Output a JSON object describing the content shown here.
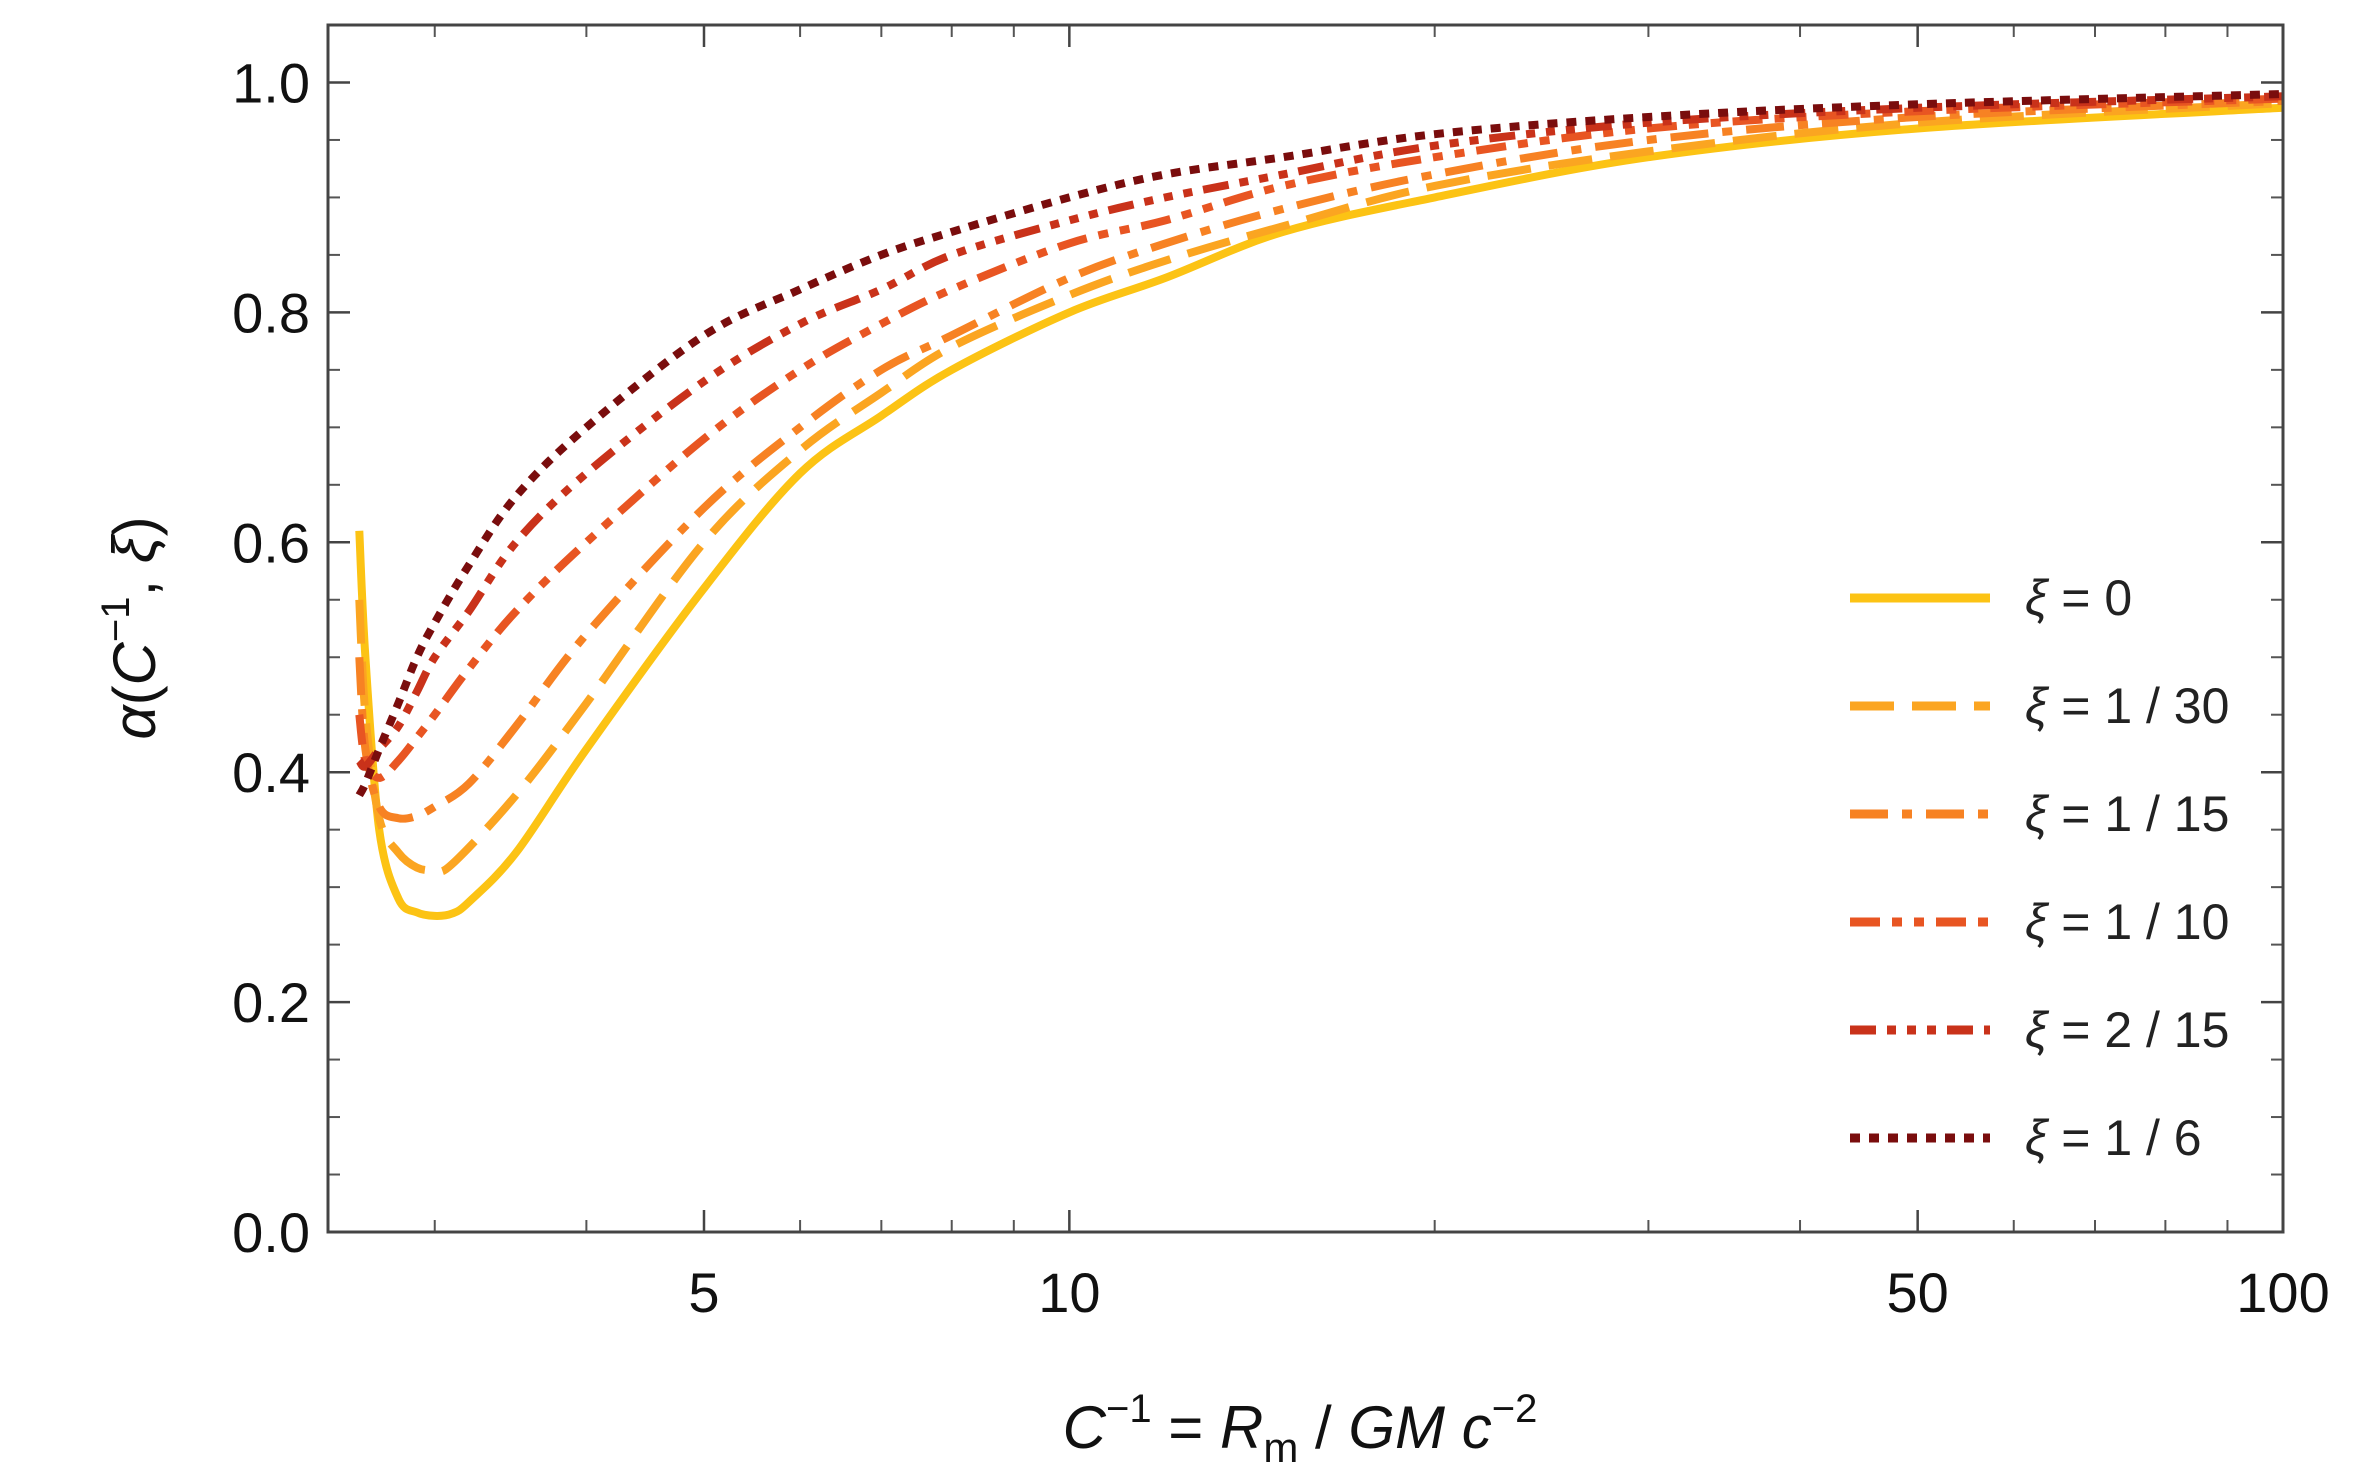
{
  "chart_data": {
    "type": "line",
    "xscale": "log",
    "xlim": [
      2.45,
      100
    ],
    "ylim": [
      0.0,
      1.05
    ],
    "grid": false,
    "legend_position": "right",
    "xlabel": {
      "base": "C",
      "base_exp": "−1",
      "eq": " = ",
      "r": "R",
      "r_sub": "m",
      "mid": " / ",
      "gm": "GM",
      "sp": " ",
      "c": "c",
      "c_exp": "−2"
    },
    "ylabel": {
      "alpha": "α",
      "open": "(",
      "c": "C",
      "c_exp": "−1",
      "comma": ", ",
      "xi": "ξ",
      "close": ")"
    },
    "x_ticks": [
      {
        "value": 5,
        "label": "5"
      },
      {
        "value": 10,
        "label": "10"
      },
      {
        "value": 50,
        "label": "50"
      },
      {
        "value": 100,
        "label": "100"
      }
    ],
    "y_ticks": [
      {
        "value": 0.0,
        "label": "0.0"
      },
      {
        "value": 0.2,
        "label": "0.2"
      },
      {
        "value": 0.4,
        "label": "0.4"
      },
      {
        "value": 0.6,
        "label": "0.6"
      },
      {
        "value": 0.8,
        "label": "0.8"
      },
      {
        "value": 1.0,
        "label": "1.0"
      }
    ],
    "series": [
      {
        "name": "ξ = 0",
        "label_xi": "ξ",
        "label_rest": " = 0",
        "color": "#FCC314",
        "dash": "solid",
        "x": [
          2.6,
          2.63,
          2.7,
          2.8,
          2.9,
          3.0,
          3.1,
          3.2,
          3.5,
          4.0,
          5.0,
          6.0,
          7.0,
          8.0,
          10.0,
          12.0,
          15.0,
          20.0,
          30.0,
          50.0,
          100.0
        ],
        "y": [
          0.61,
          0.5,
          0.35,
          0.29,
          0.278,
          0.275,
          0.277,
          0.287,
          0.33,
          0.42,
          0.56,
          0.66,
          0.71,
          0.75,
          0.8,
          0.83,
          0.87,
          0.9,
          0.935,
          0.96,
          0.978
        ]
      },
      {
        "name": "ξ = 1/30",
        "label_xi": "ξ",
        "label_rest": " = 1 / 30",
        "color": "#FBA521",
        "dash": "dashed",
        "x": [
          2.6,
          2.63,
          2.7,
          2.8,
          2.9,
          3.0,
          3.1,
          3.5,
          4.0,
          5.0,
          6.0,
          7.0,
          8.0,
          10.0,
          12.0,
          15.0,
          20.0,
          30.0,
          50.0,
          100.0
        ],
        "y": [
          0.55,
          0.45,
          0.36,
          0.33,
          0.317,
          0.315,
          0.32,
          0.38,
          0.46,
          0.6,
          0.68,
          0.73,
          0.77,
          0.815,
          0.845,
          0.875,
          0.91,
          0.94,
          0.965,
          0.982
        ]
      },
      {
        "name": "ξ = 1/15",
        "label_xi": "ξ",
        "label_rest": " = 1 / 15",
        "color": "#F78223",
        "dash": "dashdot",
        "x": [
          2.6,
          2.63,
          2.7,
          2.8,
          2.9,
          3.0,
          3.2,
          3.5,
          4.0,
          5.0,
          6.0,
          7.0,
          8.0,
          10.0,
          12.0,
          15.0,
          20.0,
          30.0,
          50.0,
          100.0
        ],
        "y": [
          0.5,
          0.42,
          0.37,
          0.36,
          0.362,
          0.37,
          0.39,
          0.44,
          0.52,
          0.63,
          0.7,
          0.75,
          0.78,
          0.83,
          0.86,
          0.89,
          0.92,
          0.95,
          0.97,
          0.984
        ]
      },
      {
        "name": "ξ = 1/10",
        "label_xi": "ξ",
        "label_rest": " = 1 / 10",
        "color": "#E85522",
        "dash": "dashdotdot",
        "x": [
          2.6,
          2.63,
          2.7,
          2.8,
          2.9,
          3.0,
          3.2,
          3.5,
          4.0,
          5.0,
          6.0,
          7.0,
          8.0,
          10.0,
          12.0,
          15.0,
          20.0,
          30.0,
          50.0,
          100.0
        ],
        "y": [
          0.45,
          0.41,
          0.395,
          0.41,
          0.43,
          0.45,
          0.49,
          0.54,
          0.6,
          0.69,
          0.75,
          0.79,
          0.82,
          0.86,
          0.88,
          0.91,
          0.935,
          0.96,
          0.975,
          0.986
        ]
      },
      {
        "name": "ξ = 2/15",
        "label_xi": "ξ",
        "label_rest": " = 2 / 15",
        "color": "#C9321A",
        "dash": "dashdotdotdot",
        "x": [
          2.6,
          2.63,
          2.7,
          2.8,
          2.9,
          3.0,
          3.2,
          3.5,
          4.0,
          5.0,
          6.0,
          7.0,
          8.0,
          10.0,
          12.0,
          15.0,
          20.0,
          30.0,
          50.0,
          100.0
        ],
        "y": [
          0.41,
          0.405,
          0.42,
          0.44,
          0.47,
          0.5,
          0.54,
          0.6,
          0.66,
          0.74,
          0.79,
          0.82,
          0.85,
          0.88,
          0.9,
          0.92,
          0.945,
          0.965,
          0.978,
          0.988
        ]
      },
      {
        "name": "ξ = 1/6",
        "label_xi": "ξ",
        "label_rest": " = 1 / 6",
        "color": "#7A0D0D",
        "dash": "dotted",
        "x": [
          2.6,
          2.63,
          2.7,
          2.8,
          2.9,
          3.0,
          3.2,
          3.5,
          4.0,
          5.0,
          6.0,
          7.0,
          8.0,
          10.0,
          12.0,
          15.0,
          20.0,
          30.0,
          50.0,
          100.0
        ],
        "y": [
          0.38,
          0.39,
          0.42,
          0.46,
          0.5,
          0.53,
          0.58,
          0.64,
          0.7,
          0.78,
          0.82,
          0.85,
          0.87,
          0.9,
          0.92,
          0.935,
          0.955,
          0.97,
          0.981,
          0.99
        ]
      }
    ]
  }
}
